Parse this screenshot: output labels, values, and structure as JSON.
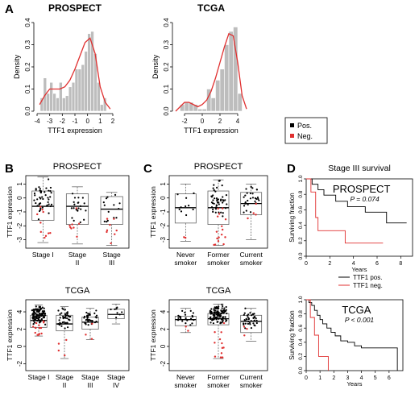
{
  "panel_letters": {
    "A": "A",
    "B": "B",
    "C": "C",
    "D": "D"
  },
  "legend": {
    "pos": "Pos.",
    "neg": "Neg.",
    "pos_color": "#000000",
    "neg_color": "#e03030"
  },
  "colors": {
    "bar": "#bdbdbd",
    "density": "#e03030",
    "point_pos": "#000000",
    "point_neg": "#e03030",
    "km_pos": "#000000",
    "km_neg": "#e03030"
  },
  "chart_data": [
    {
      "id": "hist_prospect",
      "type": "bar",
      "title": "PROSPECT",
      "xlabel": "TTF1 expression",
      "ylabel": "Density",
      "xlim": [
        -4,
        2
      ],
      "ylim": [
        0,
        0.4
      ],
      "xticks": [
        "-4",
        "-3",
        "-2",
        "-1",
        "0",
        "1",
        "2"
      ],
      "yticks": [
        "0.0",
        "0.1",
        "0.2",
        "0.3",
        "0.4"
      ],
      "bin_edges": [
        -3.75,
        -3.5,
        -3.25,
        -3.0,
        -2.75,
        -2.5,
        -2.25,
        -2.0,
        -1.75,
        -1.5,
        -1.25,
        -1.0,
        -0.75,
        -0.5,
        -0.25,
        0.0,
        0.25,
        0.5,
        0.75,
        1.0,
        1.25,
        1.5
      ],
      "values": [
        0.06,
        0.15,
        0.08,
        0.13,
        0.08,
        0.06,
        0.13,
        0.06,
        0.07,
        0.11,
        0.13,
        0.19,
        0.19,
        0.21,
        0.27,
        0.35,
        0.36,
        0.26,
        0.13,
        0.03,
        0.06
      ],
      "density_x": [
        -3.8,
        -3.4,
        -3.0,
        -2.6,
        -2.2,
        -1.8,
        -1.4,
        -1.0,
        -0.6,
        -0.2,
        0.2,
        0.6,
        1.0,
        1.4,
        1.8
      ],
      "density_y": [
        0.03,
        0.07,
        0.1,
        0.1,
        0.1,
        0.11,
        0.14,
        0.19,
        0.25,
        0.31,
        0.33,
        0.26,
        0.11,
        0.04,
        0.01
      ]
    },
    {
      "id": "hist_tcga",
      "type": "bar",
      "title": "TCGA",
      "xlabel": "TTF1 expression",
      "ylabel": "Density",
      "xlim": [
        -3,
        5
      ],
      "ylim": [
        0,
        0.4
      ],
      "xticks": [
        "-2",
        "0",
        "2",
        "4"
      ],
      "yticks": [
        "0.0",
        "0.1",
        "0.2",
        "0.3",
        "0.4"
      ],
      "bin_edges": [
        -2.5,
        -2.0,
        -1.5,
        -1.0,
        -0.5,
        0.0,
        0.5,
        1.0,
        1.5,
        2.0,
        2.5,
        3.0,
        3.5,
        4.0,
        4.5
      ],
      "values": [
        0.03,
        0.04,
        0.04,
        0.03,
        0.01,
        0.01,
        0.1,
        0.06,
        0.14,
        0.19,
        0.3,
        0.36,
        0.38,
        0.08
      ],
      "density_x": [
        -3.0,
        -2.5,
        -2.0,
        -1.5,
        -1.0,
        -0.5,
        0.0,
        0.5,
        1.0,
        1.5,
        2.0,
        2.5,
        3.0,
        3.5,
        4.0,
        4.5,
        5.0
      ],
      "density_y": [
        0.0,
        0.02,
        0.04,
        0.04,
        0.03,
        0.02,
        0.03,
        0.05,
        0.09,
        0.15,
        0.22,
        0.29,
        0.35,
        0.34,
        0.22,
        0.07,
        0.01
      ]
    },
    {
      "id": "box_prospect_stage",
      "type": "box",
      "title": "PROSPECT",
      "ylabel": "TTF1 expression",
      "ylim": [
        -3.6,
        1.6
      ],
      "yticks": [
        "1",
        "0",
        "-1",
        "-2",
        "-3"
      ],
      "categories": [
        [
          "Stage I"
        ],
        [
          "Stage",
          "II"
        ],
        [
          "Stage",
          "III"
        ]
      ],
      "boxes": [
        {
          "min": -3.2,
          "q1": -1.6,
          "median": -0.6,
          "q3": 0.5,
          "max": 1.5,
          "n_pos": 45,
          "n_neg": 10
        },
        {
          "min": -3.3,
          "q1": -1.9,
          "median": -0.6,
          "q3": 0.3,
          "max": 0.8,
          "n_pos": 22,
          "n_neg": 8
        },
        {
          "min": -3.4,
          "q1": -1.9,
          "median": -0.8,
          "q3": 0.1,
          "max": 0.4,
          "n_pos": 14,
          "n_neg": 8
        }
      ]
    },
    {
      "id": "box_prospect_smoke",
      "type": "box",
      "title": "PROSPECT",
      "ylabel": "TTF1 expression",
      "ylim": [
        -3.6,
        1.6
      ],
      "yticks": [
        "1",
        "0",
        "-1",
        "-2",
        "-3"
      ],
      "categories": [
        [
          "Never",
          "smoker"
        ],
        [
          "Former",
          "smoker"
        ],
        [
          "Current",
          "smoker"
        ]
      ],
      "boxes": [
        {
          "min": -3.1,
          "q1": -1.8,
          "median": -0.7,
          "q3": 0.3,
          "max": 1.0,
          "n_pos": 10,
          "n_neg": 2
        },
        {
          "min": -3.4,
          "q1": -1.9,
          "median": -0.7,
          "q3": 0.5,
          "max": 1.3,
          "n_pos": 45,
          "n_neg": 16
        },
        {
          "min": -3.0,
          "q1": -1.2,
          "median": -0.4,
          "q3": 0.4,
          "max": 1.0,
          "n_pos": 28,
          "n_neg": 4
        }
      ]
    },
    {
      "id": "box_tcga_stage",
      "type": "box",
      "title": "TCGA",
      "ylabel": "TTF1 expression",
      "ylim": [
        -2.8,
        5.4
      ],
      "yticks": [
        "4",
        "2",
        "0",
        "-2"
      ],
      "categories": [
        [
          "Stage I"
        ],
        [
          "Stage",
          "II"
        ],
        [
          "Stage",
          "III"
        ],
        [
          "Stage",
          "IV"
        ]
      ],
      "boxes": [
        {
          "min": 1.2,
          "q1": 2.2,
          "median": 3.0,
          "q3": 3.6,
          "max": 4.8,
          "n_pos": 110,
          "n_neg": 14
        },
        {
          "min": -1.4,
          "q1": 1.8,
          "median": 2.6,
          "q3": 3.6,
          "max": 4.6,
          "n_pos": 40,
          "n_neg": 4
        },
        {
          "min": 0.8,
          "q1": 2.0,
          "median": 2.8,
          "q3": 3.4,
          "max": 4.4,
          "n_pos": 35,
          "n_neg": 3
        },
        {
          "min": 2.6,
          "q1": 3.2,
          "median": 3.7,
          "q3": 4.3,
          "max": 4.9,
          "n_pos": 8,
          "n_neg": 0
        }
      ]
    },
    {
      "id": "box_tcga_smoke",
      "type": "box",
      "title": "TCGA",
      "ylabel": "TTF1 expression",
      "ylim": [
        -2.8,
        5.4
      ],
      "yticks": [
        "4",
        "2",
        "0",
        "-2"
      ],
      "categories": [
        [
          "Never",
          "smoker"
        ],
        [
          "Former",
          "smoker"
        ],
        [
          "Current",
          "smoker"
        ]
      ],
      "boxes": [
        {
          "min": 1.6,
          "q1": 2.4,
          "median": 3.1,
          "q3": 3.5,
          "max": 4.4,
          "n_pos": 22,
          "n_neg": 2
        },
        {
          "min": -1.4,
          "q1": 2.5,
          "median": 3.2,
          "q3": 3.8,
          "max": 4.9,
          "n_pos": 110,
          "n_neg": 12
        },
        {
          "min": 0.6,
          "q1": 1.6,
          "median": 2.9,
          "q3": 3.6,
          "max": 4.4,
          "n_pos": 40,
          "n_neg": 3
        }
      ]
    },
    {
      "id": "km_prospect",
      "type": "line",
      "title": "Stage III survival",
      "label": "PROSPECT",
      "pvalue": "P = 0.074",
      "xlabel": "Years",
      "ylabel": "Surviving fraction",
      "xlim": [
        0,
        9
      ],
      "ylim": [
        0,
        1
      ],
      "xticks": [
        "0",
        "2",
        "4",
        "6",
        "8"
      ],
      "yticks": [
        "0.0",
        "0.2",
        "0.4",
        "0.6",
        "0.8",
        "1.0"
      ],
      "series": [
        {
          "name": "TTF1 pos.",
          "times": [
            0,
            0.5,
            1.0,
            1.5,
            2.5,
            3.5,
            5.0,
            6.8,
            8.5
          ],
          "surv": [
            1.0,
            0.93,
            0.86,
            0.79,
            0.71,
            0.64,
            0.57,
            0.43,
            0.43
          ]
        },
        {
          "name": "TTF1 neg.",
          "times": [
            0,
            0.4,
            0.8,
            1.0,
            3.3,
            6.5
          ],
          "surv": [
            1.0,
            0.83,
            0.5,
            0.33,
            0.17,
            0.17
          ]
        }
      ]
    },
    {
      "id": "km_tcga",
      "type": "line",
      "label": "TCGA",
      "pvalue": "P < 0.001",
      "xlabel": "Years",
      "ylabel": "Surviving fraction",
      "xlim": [
        0,
        7
      ],
      "ylim": [
        0,
        1
      ],
      "xticks": [
        "0",
        "1",
        "2",
        "3",
        "4",
        "5",
        "6"
      ],
      "yticks": [
        "0.0",
        "0.2",
        "0.4",
        "0.6",
        "0.8",
        "1.0"
      ],
      "series": [
        {
          "name": "TTF1 pos.",
          "times": [
            0,
            0.2,
            0.4,
            0.6,
            0.8,
            1.0,
            1.2,
            1.5,
            1.8,
            2.1,
            2.5,
            3.0,
            3.5,
            4.0,
            6.5,
            6.6
          ],
          "surv": [
            1.0,
            0.96,
            0.92,
            0.85,
            0.78,
            0.72,
            0.66,
            0.6,
            0.54,
            0.49,
            0.42,
            0.4,
            0.35,
            0.32,
            0.32,
            0.0
          ]
        },
        {
          "name": "TTF1 neg.",
          "times": [
            0,
            0.3,
            0.6,
            0.9,
            1.6
          ],
          "surv": [
            1.0,
            0.75,
            0.5,
            0.2,
            0.0
          ]
        }
      ]
    }
  ]
}
